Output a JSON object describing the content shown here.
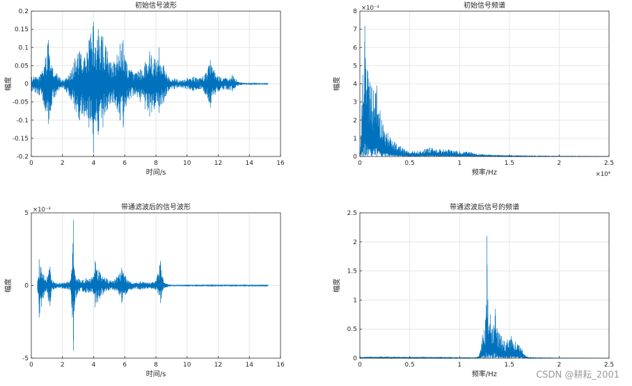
{
  "watermark": "CSDN @耕耘_2001",
  "style": {
    "line_color": "#0072bd",
    "axis_color": "#262626",
    "grid_color": "#e6e6e6"
  },
  "chart_data": [
    {
      "id": "p1",
      "type": "line",
      "title": "初始信号波形",
      "xlabel": "时间/s",
      "ylabel": "幅度",
      "xlim": [
        0,
        16
      ],
      "ylim": [
        -0.2,
        0.2
      ],
      "xticks": [
        "0",
        "2",
        "4",
        "6",
        "8",
        "10",
        "12",
        "14",
        "16"
      ],
      "yticks": [
        "0.2",
        "0.15",
        "0.1",
        "0.05",
        "0",
        "-0.05",
        "-0.1",
        "-0.15",
        "-0.2"
      ],
      "grid": true,
      "series": [
        {
          "x": [
            0,
            0.5,
            0.9,
            1.1,
            1.3,
            1.6,
            2.0,
            2.5,
            2.8,
            3.1,
            3.4,
            3.7,
            4.0,
            4.1,
            4.3,
            4.6,
            4.9,
            5.2,
            5.5,
            5.7,
            5.9,
            6.1,
            6.4,
            6.7,
            7.0,
            7.3,
            7.6,
            7.9,
            8.2,
            8.5,
            8.8,
            9.2,
            9.6,
            10.0,
            10.4,
            10.8,
            11.2,
            11.5,
            11.8,
            12.1,
            12.5,
            12.9,
            13.3,
            13.8,
            14.5,
            15.2
          ],
          "max": [
            0.02,
            0.02,
            0.07,
            0.12,
            0.05,
            0.03,
            0.01,
            0.03,
            0.07,
            0.09,
            0.07,
            0.12,
            0.17,
            0.1,
            0.15,
            0.13,
            0.09,
            0.05,
            0.08,
            0.11,
            0.12,
            0.06,
            0.04,
            0.03,
            0.04,
            0.06,
            0.09,
            0.07,
            0.1,
            0.05,
            0.02,
            0.015,
            0.01,
            0.015,
            0.02,
            0.015,
            0.03,
            0.065,
            0.03,
            0.02,
            0.015,
            0.025,
            0.005,
            0.003,
            0.001,
            0.001
          ],
          "min": [
            -0.02,
            -0.03,
            -0.07,
            -0.11,
            -0.06,
            -0.03,
            -0.01,
            -0.04,
            -0.07,
            -0.1,
            -0.09,
            -0.12,
            -0.19,
            -0.1,
            -0.14,
            -0.12,
            -0.07,
            -0.05,
            -0.07,
            -0.1,
            -0.12,
            -0.06,
            -0.04,
            -0.03,
            -0.05,
            -0.07,
            -0.09,
            -0.07,
            -0.08,
            -0.05,
            -0.02,
            -0.015,
            -0.01,
            -0.015,
            -0.02,
            -0.015,
            -0.03,
            -0.065,
            -0.03,
            -0.02,
            -0.015,
            -0.02,
            -0.004,
            -0.002,
            -0.001,
            -0.001
          ]
        }
      ]
    },
    {
      "id": "p2",
      "type": "line",
      "title": "初始信号频谱",
      "xlabel": "频率/Hz",
      "ylabel": "幅度",
      "xlim": [
        0,
        25000
      ],
      "ylim": [
        0,
        0.008
      ],
      "xticks": [
        "0",
        "0.5",
        "1",
        "1.5",
        "2",
        "2.5"
      ],
      "yticks": [
        "8",
        "7",
        "6",
        "5",
        "4",
        "3",
        "2",
        "1",
        "0"
      ],
      "x_exponent": "×10⁴",
      "y_exponent": "×10⁻³",
      "grid": true,
      "series": [
        {
          "x": [
            0,
            300,
            500,
            800,
            1200,
            1700,
            2200,
            2800,
            3500,
            4500,
            5500,
            6500,
            7000,
            8000,
            9000,
            10000,
            11000,
            12000,
            13000,
            14000,
            15000,
            16000,
            18000,
            20000,
            22000,
            25000
          ],
          "max": [
            0.0002,
            0.0045,
            0.0072,
            0.0047,
            0.0038,
            0.0039,
            0.002,
            0.0013,
            0.0008,
            0.0004,
            0.0003,
            0.0004,
            0.0005,
            0.0004,
            0.0004,
            0.0003,
            0.00025,
            0.00015,
            0.0001,
            8e-05,
            5e-05,
            4e-05,
            3e-05,
            2e-05,
            2e-05,
            1e-05
          ]
        }
      ]
    },
    {
      "id": "p3",
      "type": "line",
      "title": "带通滤波后的信号波形",
      "xlabel": "时间/s",
      "ylabel": "幅度",
      "xlim": [
        0,
        16
      ],
      "ylim": [
        -0.005,
        0.005
      ],
      "xticks": [
        "0",
        "2",
        "4",
        "6",
        "8",
        "10",
        "12",
        "14",
        "16"
      ],
      "yticks": [
        "5",
        "0",
        "-5"
      ],
      "y_exponent": "×10⁻³",
      "grid": true,
      "series": [
        {
          "x": [
            0.4,
            0.5,
            0.9,
            1.2,
            1.3,
            1.6,
            2.0,
            2.5,
            2.6,
            2.7,
            2.8,
            3.1,
            3.5,
            4.0,
            4.1,
            4.4,
            4.8,
            5.2,
            5.6,
            5.8,
            6.2,
            6.6,
            7.0,
            7.5,
            8.0,
            8.3,
            8.5,
            9.0,
            10.0,
            11.0,
            12.0,
            13.0,
            14.0,
            15.2
          ],
          "max": [
            0.0003,
            0.0018,
            0.0004,
            0.0013,
            0.0004,
            0.0002,
            0.0002,
            0.0003,
            0.0011,
            0.0045,
            0.0007,
            0.0004,
            0.0005,
            0.0006,
            0.0017,
            0.0009,
            0.0005,
            0.0003,
            0.0007,
            0.0012,
            0.0004,
            0.0002,
            0.0003,
            0.0002,
            0.0003,
            0.0017,
            0.0002,
            5e-05,
            5e-05,
            4e-05,
            4e-05,
            4e-05,
            4e-05,
            3e-05
          ],
          "min": [
            -0.0003,
            -0.0022,
            -0.0004,
            -0.0014,
            -0.0004,
            -0.0002,
            -0.0002,
            -0.0003,
            -0.0015,
            -0.0045,
            -0.0011,
            -0.0004,
            -0.0005,
            -0.0006,
            -0.0015,
            -0.0009,
            -0.0004,
            -0.0003,
            -0.0006,
            -0.0012,
            -0.0004,
            -0.0002,
            -0.0003,
            -0.0002,
            -0.0003,
            -0.0012,
            -0.0002,
            -5e-05,
            -5e-05,
            -4e-05,
            -4e-05,
            -4e-05,
            -4e-05,
            -3e-05
          ]
        }
      ]
    },
    {
      "id": "p4",
      "type": "line",
      "title": "带通滤波后信号的频谱",
      "xlabel": "频率/Hz",
      "ylabel": "幅度",
      "xlim": [
        0,
        25000
      ],
      "ylim": [
        0,
        2.5
      ],
      "xticks": [
        "0",
        "0.5",
        "1",
        "1.5",
        "2",
        "2.5"
      ],
      "yticks": [
        "2.5",
        "2",
        "1.5",
        "1",
        "0.5",
        "0"
      ],
      "grid": true,
      "series": [
        {
          "x": [
            0,
            2000,
            5000,
            8000,
            10000,
            11500,
            11900,
            12100,
            12300,
            12600,
            12750,
            12850,
            12950,
            13100,
            13300,
            13600,
            13900,
            14200,
            14500,
            14800,
            15200,
            15600,
            16000,
            16300,
            16500,
            17000,
            20000,
            25000
          ],
          "max": [
            0.02,
            0.03,
            0.02,
            0.02,
            0.01,
            0.01,
            0.03,
            0.15,
            0.4,
            0.65,
            2.1,
            1.0,
            0.55,
            0.75,
            0.5,
            0.85,
            0.45,
            0.38,
            0.3,
            0.32,
            0.38,
            0.28,
            0.22,
            0.15,
            0.06,
            0.01,
            0.005,
            0.002
          ]
        }
      ]
    }
  ]
}
